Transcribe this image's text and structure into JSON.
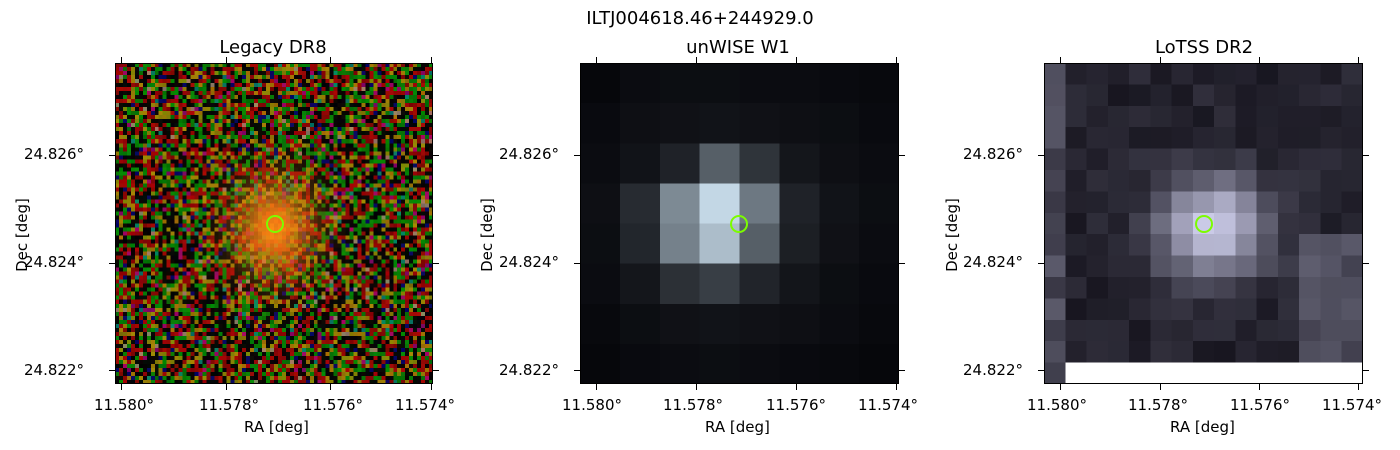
{
  "figure": {
    "title": "ILTJ004618.46+244929.0"
  },
  "panels": [
    {
      "title": "Legacy DR8",
      "xlabel": "RA [deg]",
      "ylabel": "Dec [deg]",
      "xticks": [
        "11.580°",
        "11.578°",
        "11.576°",
        "11.574°"
      ],
      "yticks": [
        "24.826°",
        "24.824°",
        "24.822°"
      ],
      "image": "optical RGB cutout with a bright orange extended source at centre",
      "marker_color": "#7cfc00"
    },
    {
      "title": "unWISE W1",
      "xlabel": "RA [deg]",
      "ylabel": "Dec [deg]",
      "xticks": [
        "11.580°",
        "11.578°",
        "11.576°",
        "11.574°"
      ],
      "yticks": [
        "24.826°",
        "24.824°",
        "24.822°"
      ],
      "image": "coarse-pixel infrared cutout, bright blob at centre",
      "marker_color": "#7cfc00"
    },
    {
      "title": "LoTSS DR2",
      "xlabel": "RA [deg]",
      "ylabel": "Dec [deg]",
      "xticks": [
        "11.580°",
        "11.578°",
        "11.576°",
        "11.574°"
      ],
      "yticks": [
        "24.826°",
        "24.824°",
        "24.822°"
      ],
      "image": "radio cutout with bright compact source at centre, blank strip at left and bottom edges",
      "marker_color": "#7cfc00"
    }
  ]
}
